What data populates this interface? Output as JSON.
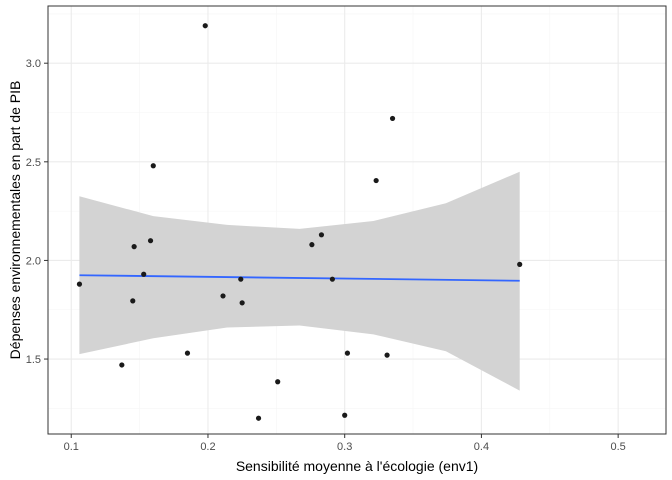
{
  "chart_data": {
    "type": "scatter",
    "xlabel": "Sensibilité moyenne à l'écologie (env1)",
    "ylabel": "Dépenses environnementales en part de PIB",
    "xlim": [
      0.083,
      0.535
    ],
    "ylim": [
      1.12,
      3.29
    ],
    "x_ticks": [
      0.1,
      0.2,
      0.3,
      0.4,
      0.5
    ],
    "x_tick_labels": [
      "0.1",
      "0.2",
      "0.3",
      "0.4",
      "0.5"
    ],
    "y_ticks": [
      1.5,
      2.0,
      2.5,
      3.0
    ],
    "y_tick_labels": [
      "1.5",
      "2.0",
      "2.5",
      "3.0"
    ],
    "grid": true,
    "legend": "none",
    "points": [
      {
        "x": 0.106,
        "y": 1.88
      },
      {
        "x": 0.137,
        "y": 1.47
      },
      {
        "x": 0.145,
        "y": 1.795
      },
      {
        "x": 0.146,
        "y": 2.07
      },
      {
        "x": 0.153,
        "y": 1.93
      },
      {
        "x": 0.158,
        "y": 2.1
      },
      {
        "x": 0.16,
        "y": 2.48
      },
      {
        "x": 0.185,
        "y": 1.53
      },
      {
        "x": 0.198,
        "y": 3.19
      },
      {
        "x": 0.211,
        "y": 1.82
      },
      {
        "x": 0.224,
        "y": 1.905
      },
      {
        "x": 0.225,
        "y": 1.785
      },
      {
        "x": 0.237,
        "y": 1.2
      },
      {
        "x": 0.251,
        "y": 1.385
      },
      {
        "x": 0.276,
        "y": 2.08
      },
      {
        "x": 0.283,
        "y": 2.13
      },
      {
        "x": 0.291,
        "y": 1.905
      },
      {
        "x": 0.3,
        "y": 1.215
      },
      {
        "x": 0.302,
        "y": 1.53
      },
      {
        "x": 0.323,
        "y": 2.405
      },
      {
        "x": 0.331,
        "y": 1.52
      },
      {
        "x": 0.335,
        "y": 2.72
      },
      {
        "x": 0.428,
        "y": 1.98
      }
    ],
    "fit": {
      "method": "linear",
      "x": [
        0.106,
        0.428
      ],
      "y": [
        1.925,
        1.897
      ],
      "ci_lower": [
        1.525,
        1.605,
        1.66,
        1.67,
        1.625,
        1.54,
        1.34
      ],
      "ci_upper": [
        2.325,
        2.225,
        2.18,
        2.16,
        2.2,
        2.29,
        2.45
      ],
      "ci_x": [
        0.106,
        0.16,
        0.214,
        0.267,
        0.321,
        0.374,
        0.428
      ],
      "line_color": "#3366FF",
      "band_color": "#d3d3d3"
    },
    "colors": {
      "panel_border": "#333333",
      "grid_major": "#ebebeb",
      "grid_minor": "#f5f5f5",
      "point": "#1a1a1a"
    }
  }
}
